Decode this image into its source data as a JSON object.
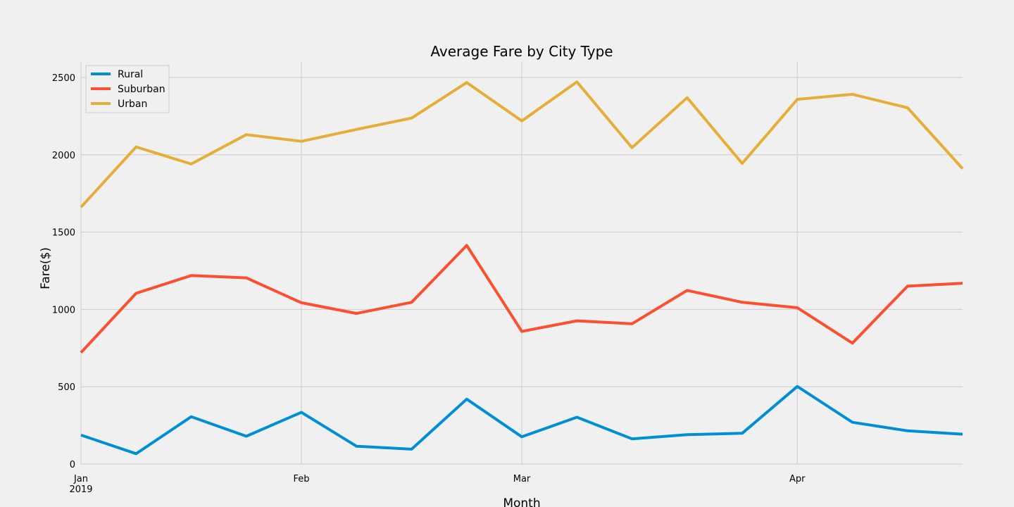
{
  "chart_data": {
    "type": "line",
    "title": "Average Fare by City Type",
    "xlabel": "Month",
    "ylabel": "Fare($)",
    "x": [
      "2019-01-06",
      "2019-01-13",
      "2019-01-20",
      "2019-01-27",
      "2019-02-03",
      "2019-02-10",
      "2019-02-17",
      "2019-02-24",
      "2019-03-03",
      "2019-03-10",
      "2019-03-17",
      "2019-03-24",
      "2019-03-31",
      "2019-04-07",
      "2019-04-14",
      "2019-04-21",
      "2019-04-28"
    ],
    "xlim": [
      "2019-01-06",
      "2019-04-28"
    ],
    "ylim": [
      0,
      2600
    ],
    "yticks": [
      0,
      500,
      1000,
      1500,
      2000,
      2500
    ],
    "xticks": [
      {
        "date": "2019-01-06",
        "label": "Jan",
        "sublabel": "2019"
      },
      {
        "date": "2019-02-03",
        "label": "Feb",
        "sublabel": ""
      },
      {
        "date": "2019-03-03",
        "label": "Mar",
        "sublabel": ""
      },
      {
        "date": "2019-04-07",
        "label": "Apr",
        "sublabel": ""
      }
    ],
    "grid": true,
    "legend_position": "top-left",
    "series": [
      {
        "name": "Rural",
        "color": "#008fd5",
        "values": [
          187,
          67,
          306,
          180,
          334,
          115,
          96,
          420,
          176,
          303,
          163,
          190,
          199,
          502,
          270,
          215,
          193
        ]
      },
      {
        "name": "Suburban",
        "color": "#fc4f30",
        "values": [
          721,
          1104,
          1219,
          1204,
          1043,
          974,
          1046,
          1414,
          858,
          926,
          907,
          1123,
          1046,
          1011,
          782,
          1150,
          1169
        ]
      },
      {
        "name": "Urban",
        "color": "#e5ae38",
        "values": [
          1661,
          2051,
          1940,
          2130,
          2087,
          2164,
          2237,
          2467,
          2219,
          2471,
          2046,
          2369,
          1944,
          2358,
          2391,
          2304,
          1910
        ]
      }
    ]
  }
}
